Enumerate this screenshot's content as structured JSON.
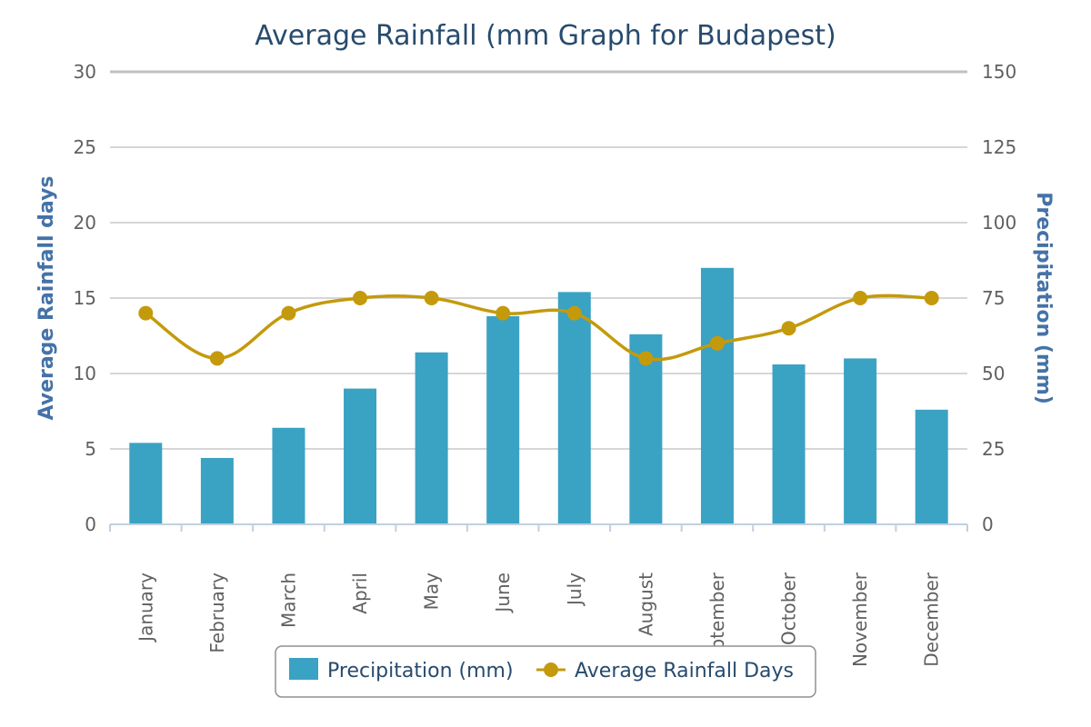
{
  "chart_data": {
    "type": "bar",
    "title": "Average Rainfall (mm Graph for Budapest)",
    "categories": [
      "January",
      "February",
      "March",
      "April",
      "May",
      "June",
      "July",
      "August",
      "September",
      "October",
      "November",
      "December"
    ],
    "y_left": {
      "label": "Average Rainfall days",
      "ylim": [
        0,
        30
      ],
      "ticks": [
        0,
        5,
        10,
        15,
        20,
        25,
        30
      ]
    },
    "y_right": {
      "label": "Precipitation (mm)",
      "ylim": [
        0,
        150
      ],
      "ticks": [
        0,
        25,
        50,
        75,
        100,
        125,
        150
      ]
    },
    "series": [
      {
        "name": "Precipitation (mm)",
        "type": "bar",
        "axis": "right",
        "color": "#3aa2c3",
        "values": [
          27,
          22,
          32,
          45,
          57,
          69,
          77,
          63,
          85,
          53,
          55,
          38
        ]
      },
      {
        "name": "Average Rainfall Days",
        "type": "line",
        "axis": "left",
        "color": "#c49a0c",
        "values": [
          14,
          11,
          14,
          15,
          15,
          14,
          14,
          11,
          12,
          13,
          15,
          15
        ]
      }
    ],
    "grid": true,
    "legend_position": "bottom-center"
  }
}
